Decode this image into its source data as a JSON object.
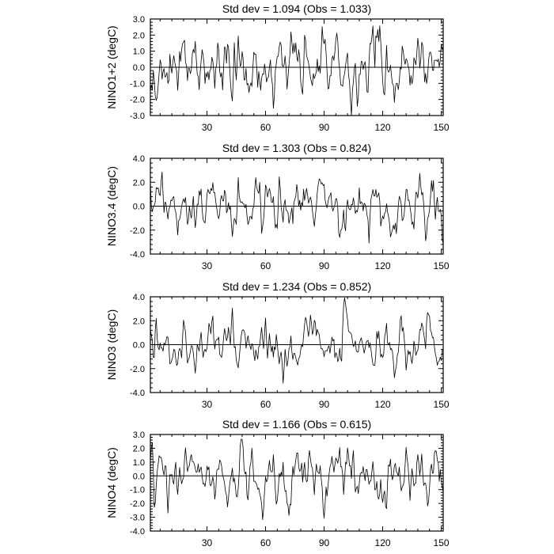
{
  "chart_data": [
    {
      "type": "line",
      "title": "Std dev = 1.094 (Obs = 1.033)",
      "ylabel": "NINO1+2 (degC)",
      "xlabel": "",
      "xlim": [
        1,
        151
      ],
      "xticks": [
        30,
        60,
        90,
        120,
        150
      ],
      "xtick_labels": [
        "30",
        "60",
        "90",
        "120",
        "150"
      ],
      "ylim": [
        -3.0,
        3.0
      ],
      "yticks": [
        -3.0,
        -2.0,
        -1.0,
        0.0,
        1.0,
        2.0,
        3.0
      ],
      "ytick_labels": [
        "-3.0",
        "-2.0",
        "-1.0",
        "0.0",
        "1.0",
        "2.0",
        "3.0"
      ],
      "zero_line": true,
      "grid": false,
      "seed": 11,
      "series": [
        {
          "name": "",
          "std": 1.094,
          "x_start": 1,
          "x_end": 151
        }
      ]
    },
    {
      "type": "line",
      "title": "Std dev = 1.303 (Obs = 0.824)",
      "ylabel": "NINO3.4 (degC)",
      "xlabel": "",
      "xlim": [
        1,
        151
      ],
      "xticks": [
        30,
        60,
        90,
        120,
        150
      ],
      "xtick_labels": [
        "30",
        "60",
        "90",
        "120",
        "150"
      ],
      "ylim": [
        -4.0,
        4.0
      ],
      "yticks": [
        -4.0,
        -2.0,
        0.0,
        2.0,
        4.0
      ],
      "ytick_labels": [
        "-4.0",
        "-2.0",
        "0.0",
        "2.0",
        "4.0"
      ],
      "zero_line": true,
      "grid": false,
      "seed": 23,
      "series": [
        {
          "name": "",
          "std": 1.303,
          "x_start": 1,
          "x_end": 151
        }
      ]
    },
    {
      "type": "line",
      "title": "Std dev = 1.234 (Obs = 0.852)",
      "ylabel": "NINO3 (degC)",
      "xlabel": "",
      "xlim": [
        1,
        151
      ],
      "xticks": [
        30,
        60,
        90,
        120,
        150
      ],
      "xtick_labels": [
        "30",
        "60",
        "90",
        "120",
        "150"
      ],
      "ylim": [
        -4.0,
        4.0
      ],
      "yticks": [
        -4.0,
        -2.0,
        0.0,
        2.0,
        4.0
      ],
      "ytick_labels": [
        "-4.0",
        "-2.0",
        "0.0",
        "2.0",
        "4.0"
      ],
      "zero_line": true,
      "grid": false,
      "seed": 37,
      "series": [
        {
          "name": "",
          "std": 1.234,
          "x_start": 1,
          "x_end": 151
        }
      ]
    },
    {
      "type": "line",
      "title": "Std dev = 1.166 (Obs = 0.615)",
      "ylabel": "NINO4 (degC)",
      "xlabel": "",
      "xlim": [
        1,
        151
      ],
      "xticks": [
        30,
        60,
        90,
        120,
        150
      ],
      "xtick_labels": [
        "30",
        "60",
        "90",
        "120",
        "150"
      ],
      "ylim": [
        -4.0,
        3.0
      ],
      "yticks": [
        -4.0,
        -3.0,
        -2.0,
        -1.0,
        0.0,
        1.0,
        2.0,
        3.0
      ],
      "ytick_labels": [
        "-4.0",
        "-3.0",
        "-2.0",
        "-1.0",
        "0.0",
        "1.0",
        "2.0",
        "3.0"
      ],
      "zero_line": true,
      "grid": false,
      "seed": 53,
      "series": [
        {
          "name": "",
          "std": 1.166,
          "x_start": 1,
          "x_end": 151
        }
      ]
    }
  ],
  "colors": {
    "line": "#000000",
    "axis": "#000000",
    "background": "#ffffff"
  }
}
